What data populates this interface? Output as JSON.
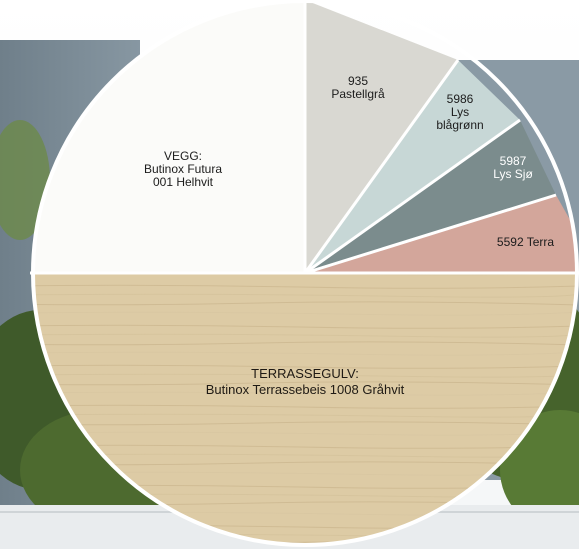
{
  "colors": {
    "veggfarge_hvit": "#fbfbf9",
    "pastellgra": "#d9d8d2",
    "lys_blagronn": "#c7d7d6",
    "lys_sjo": "#7b8c8d",
    "terra": "#d3a69b",
    "terrassegulv": "#ddcba5",
    "ramme": "#ffffff"
  },
  "segments": {
    "vegg": {
      "label": "VEGG:\nButinox Futura\n001 Helhvit"
    },
    "pastellgra": {
      "label": "935\nPastellgrå"
    },
    "lys_blagronn": {
      "label": "5986\nLys\nblågrønn"
    },
    "lys_sjo": {
      "label": "5987\nLys Sjø"
    },
    "terra": {
      "label": "5592 Terra"
    },
    "terrassegulv": {
      "label": "TERRASSEGULV:\nButinox Terrassebeis 1008 Gråhvit"
    }
  }
}
